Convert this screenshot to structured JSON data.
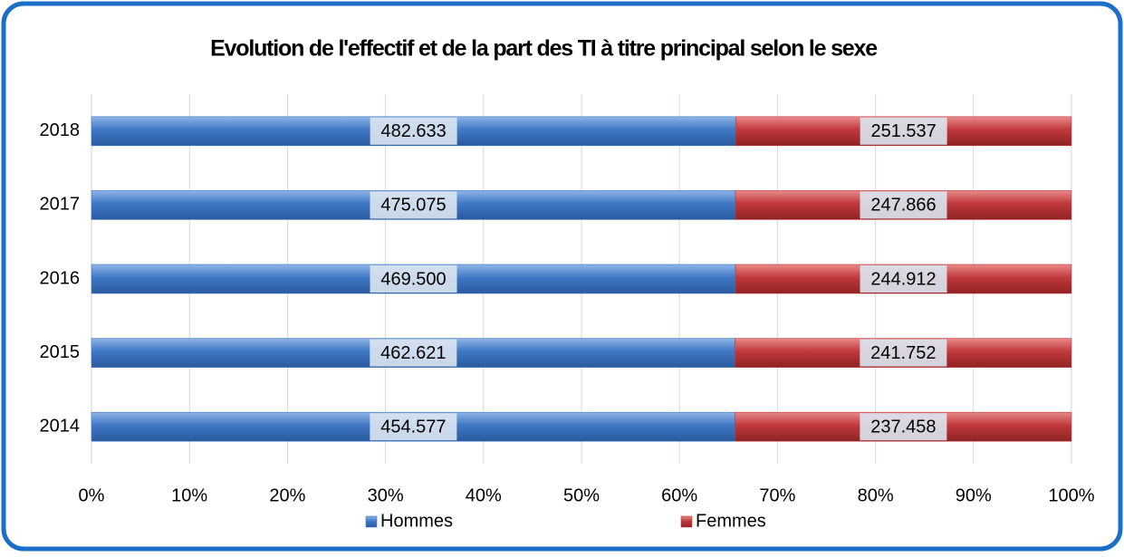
{
  "chart_data": {
    "type": "bar",
    "orientation": "horizontal",
    "stack": "percent",
    "title": "Evolution de l'effectif et de la part des TI à titre principal selon le sexe",
    "categories": [
      "2018",
      "2017",
      "2016",
      "2015",
      "2014"
    ],
    "series": [
      {
        "name": "Hommes",
        "color": "#3f78c4",
        "values": [
          482633,
          475075,
          469500,
          462621,
          454577
        ],
        "value_labels": [
          "482.633",
          "475.075",
          "469.500",
          "462.621",
          "454.577"
        ]
      },
      {
        "name": "Femmes",
        "color": "#c0393b",
        "values": [
          251537,
          247866,
          244912,
          241752,
          237458
        ],
        "value_labels": [
          "251.537",
          "247.866",
          "244.912",
          "241.752",
          "237.458"
        ]
      }
    ],
    "xlim": [
      0,
      100
    ],
    "xticks": [
      {
        "value": 0,
        "label": "0%"
      },
      {
        "value": 10,
        "label": "10%"
      },
      {
        "value": 20,
        "label": "20%"
      },
      {
        "value": 30,
        "label": "30%"
      },
      {
        "value": 40,
        "label": "40%"
      },
      {
        "value": 50,
        "label": "50%"
      },
      {
        "value": 60,
        "label": "60%"
      },
      {
        "value": 70,
        "label": "70%"
      },
      {
        "value": 80,
        "label": "80%"
      },
      {
        "value": 90,
        "label": "90%"
      },
      {
        "value": 100,
        "label": "100%"
      }
    ],
    "grid": true,
    "legend": "bottom"
  }
}
